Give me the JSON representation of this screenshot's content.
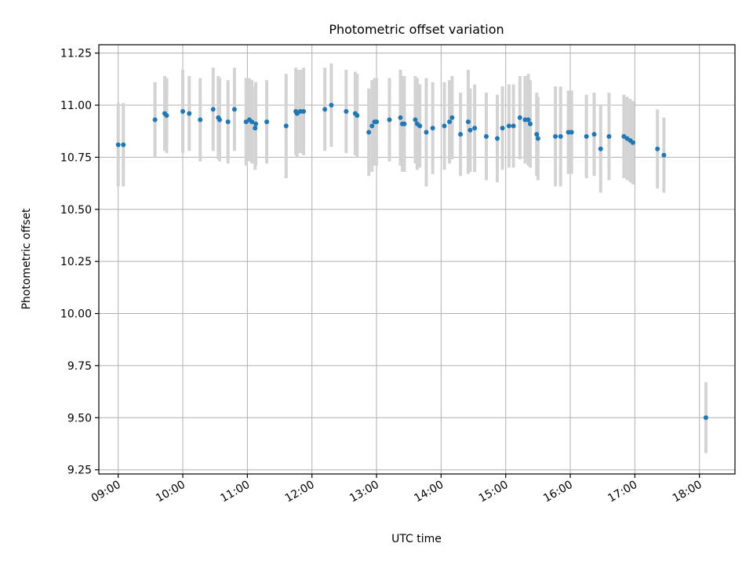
{
  "chart_data": {
    "type": "scatter",
    "title": "Photometric offset variation",
    "xlabel": "UTC time",
    "ylabel": "Photometric offset",
    "grid": true,
    "x_unit": "hours UTC",
    "xlim": [
      8.7,
      18.55
    ],
    "ylim": [
      9.23,
      11.29
    ],
    "x_ticks": [
      9,
      10,
      11,
      12,
      13,
      14,
      15,
      16,
      17,
      18
    ],
    "x_tick_labels": [
      "09:00",
      "10:00",
      "11:00",
      "12:00",
      "13:00",
      "14:00",
      "15:00",
      "16:00",
      "17:00",
      "18:00"
    ],
    "y_ticks": [
      9.25,
      9.5,
      9.75,
      10.0,
      10.25,
      10.5,
      10.75,
      11.0,
      11.25
    ],
    "y_tick_labels": [
      "9.25",
      "9.50",
      "9.75",
      "10.00",
      "10.25",
      "10.50",
      "10.75",
      "11.00",
      "11.25"
    ],
    "colors": {
      "point": "#1f77b4",
      "errorbar": "#d3d3d3"
    },
    "series": [
      {
        "x": [
          9.0,
          9.08,
          9.57,
          9.72,
          9.75,
          10.0,
          10.1,
          10.27,
          10.47,
          10.55,
          10.57,
          10.7,
          10.8,
          10.98,
          11.03,
          11.07,
          11.12,
          11.13,
          11.3,
          11.6,
          11.75,
          11.77,
          11.82,
          11.87,
          12.2,
          12.3,
          12.53,
          12.67,
          12.7,
          12.88,
          12.93,
          12.97,
          13.0,
          13.2,
          13.37,
          13.4,
          13.43,
          13.6,
          13.63,
          13.67,
          13.77,
          13.87,
          14.05,
          14.13,
          14.17,
          14.3,
          14.42,
          14.45,
          14.52,
          14.7,
          14.87,
          14.95,
          15.05,
          15.12,
          15.22,
          15.3,
          15.35,
          15.38,
          15.48,
          15.5,
          15.77,
          15.85,
          15.97,
          16.02,
          16.25,
          16.37,
          16.47,
          16.6,
          16.83,
          16.88,
          16.93,
          16.97,
          17.35,
          17.45,
          18.1
        ],
        "y": [
          10.81,
          10.81,
          10.93,
          10.96,
          10.95,
          10.97,
          10.96,
          10.93,
          10.98,
          10.94,
          10.93,
          10.92,
          10.98,
          10.92,
          10.93,
          10.92,
          10.89,
          10.91,
          10.92,
          10.9,
          10.97,
          10.96,
          10.97,
          10.97,
          10.98,
          11.0,
          10.97,
          10.96,
          10.95,
          10.87,
          10.9,
          10.92,
          10.92,
          10.93,
          10.94,
          10.91,
          10.91,
          10.93,
          10.91,
          10.9,
          10.87,
          10.89,
          10.9,
          10.92,
          10.94,
          10.86,
          10.92,
          10.88,
          10.89,
          10.85,
          10.84,
          10.89,
          10.9,
          10.9,
          10.94,
          10.93,
          10.93,
          10.91,
          10.86,
          10.84,
          10.85,
          10.85,
          10.87,
          10.87,
          10.85,
          10.86,
          10.79,
          10.85,
          10.85,
          10.84,
          10.83,
          10.82,
          10.79,
          10.76,
          9.5
        ],
        "yerr": [
          0.2,
          0.2,
          0.18,
          0.18,
          0.18,
          0.2,
          0.18,
          0.2,
          0.2,
          0.2,
          0.2,
          0.2,
          0.2,
          0.21,
          0.2,
          0.2,
          0.2,
          0.2,
          0.2,
          0.25,
          0.21,
          0.21,
          0.2,
          0.21,
          0.2,
          0.2,
          0.2,
          0.2,
          0.2,
          0.21,
          0.22,
          0.21,
          0.21,
          0.2,
          0.23,
          0.23,
          0.23,
          0.21,
          0.22,
          0.2,
          0.26,
          0.22,
          0.21,
          0.2,
          0.2,
          0.2,
          0.25,
          0.2,
          0.21,
          0.21,
          0.21,
          0.2,
          0.2,
          0.2,
          0.2,
          0.21,
          0.22,
          0.21,
          0.2,
          0.2,
          0.24,
          0.24,
          0.2,
          0.2,
          0.2,
          0.2,
          0.21,
          0.21,
          0.2,
          0.2,
          0.2,
          0.2,
          0.19,
          0.18,
          0.17
        ]
      }
    ]
  }
}
